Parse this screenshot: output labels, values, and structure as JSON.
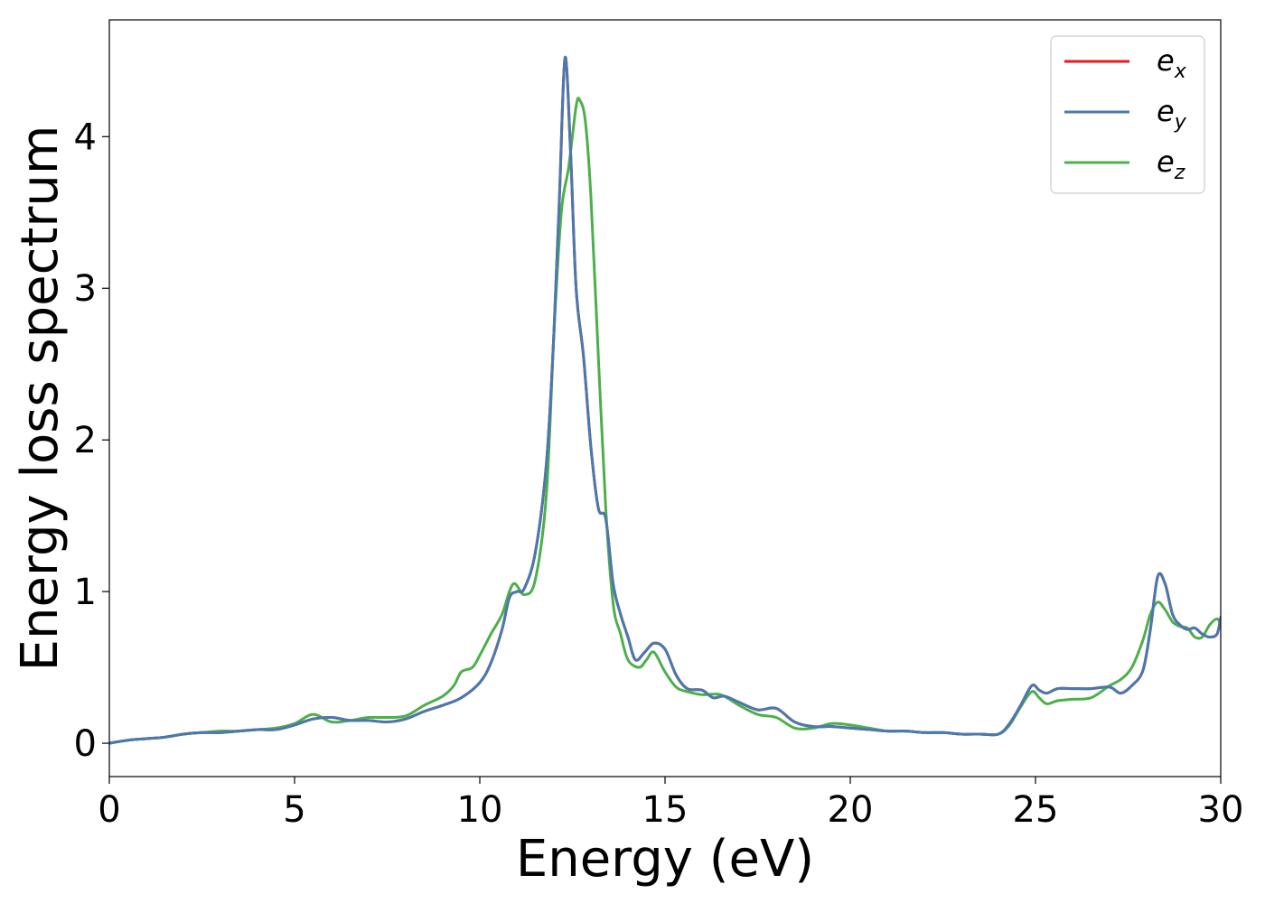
{
  "chart_data": {
    "type": "line",
    "xlabel": "Energy (eV)",
    "ylabel": "Energy loss spectrum",
    "xlim": [
      0,
      30
    ],
    "ylim": [
      -0.22,
      4.77
    ],
    "xticks": [
      "0",
      "5",
      "10",
      "15",
      "20",
      "25",
      "30"
    ],
    "yticks": [
      "0",
      "1",
      "2",
      "3",
      "4"
    ],
    "grid": false,
    "legend_position": "top-right",
    "series": [
      {
        "name": "e_x",
        "label_base": "e",
        "label_sub": "x",
        "color": "#e41a1c",
        "x": [
          0,
          0.5,
          1,
          1.5,
          2,
          2.5,
          3,
          3.5,
          4,
          4.5,
          5,
          5.5,
          6,
          6.5,
          7,
          7.5,
          8,
          8.5,
          9,
          9.5,
          10,
          10.3,
          10.6,
          10.8,
          11,
          11.2,
          11.5,
          11.8,
          12,
          12.15,
          12.3,
          12.45,
          12.6,
          12.8,
          13,
          13.2,
          13.4,
          13.6,
          13.8,
          14,
          14.2,
          14.45,
          14.7,
          15,
          15.3,
          15.6,
          16,
          16.3,
          16.6,
          17,
          17.5,
          18,
          18.5,
          19,
          19.5,
          20,
          20.5,
          21,
          21.5,
          22,
          22.5,
          23,
          23.5,
          24,
          24.3,
          24.6,
          24.9,
          25.1,
          25.3,
          25.6,
          26,
          26.5,
          27,
          27.3,
          27.6,
          27.9,
          28.1,
          28.3,
          28.5,
          28.7,
          28.9,
          29.1,
          29.3,
          29.5,
          29.7,
          29.9,
          30
        ],
        "values": [
          0,
          0.02,
          0.03,
          0.04,
          0.06,
          0.07,
          0.07,
          0.08,
          0.09,
          0.09,
          0.12,
          0.16,
          0.17,
          0.15,
          0.15,
          0.14,
          0.16,
          0.21,
          0.25,
          0.3,
          0.4,
          0.53,
          0.75,
          0.96,
          1.0,
          1.02,
          1.26,
          1.85,
          2.7,
          3.6,
          4.52,
          3.9,
          3.0,
          2.55,
          1.95,
          1.55,
          1.48,
          1.05,
          0.85,
          0.7,
          0.55,
          0.6,
          0.66,
          0.62,
          0.45,
          0.36,
          0.35,
          0.3,
          0.31,
          0.27,
          0.22,
          0.23,
          0.14,
          0.11,
          0.11,
          0.1,
          0.09,
          0.08,
          0.08,
          0.07,
          0.07,
          0.06,
          0.06,
          0.06,
          0.13,
          0.25,
          0.38,
          0.35,
          0.33,
          0.36,
          0.36,
          0.36,
          0.37,
          0.33,
          0.38,
          0.48,
          0.75,
          1.1,
          1.05,
          0.85,
          0.78,
          0.75,
          0.76,
          0.72,
          0.7,
          0.72,
          0.83
        ]
      },
      {
        "name": "e_y",
        "label_base": "e",
        "label_sub": "y",
        "color": "#4a78b0",
        "x": [
          0,
          0.5,
          1,
          1.5,
          2,
          2.5,
          3,
          3.5,
          4,
          4.5,
          5,
          5.5,
          6,
          6.5,
          7,
          7.5,
          8,
          8.5,
          9,
          9.5,
          10,
          10.3,
          10.6,
          10.8,
          11,
          11.2,
          11.5,
          11.8,
          12,
          12.15,
          12.3,
          12.45,
          12.6,
          12.8,
          13,
          13.2,
          13.4,
          13.6,
          13.8,
          14,
          14.2,
          14.45,
          14.7,
          15,
          15.3,
          15.6,
          16,
          16.3,
          16.6,
          17,
          17.5,
          18,
          18.5,
          19,
          19.5,
          20,
          20.5,
          21,
          21.5,
          22,
          22.5,
          23,
          23.5,
          24,
          24.3,
          24.6,
          24.9,
          25.1,
          25.3,
          25.6,
          26,
          26.5,
          27,
          27.3,
          27.6,
          27.9,
          28.1,
          28.3,
          28.5,
          28.7,
          28.9,
          29.1,
          29.3,
          29.5,
          29.7,
          29.9,
          30
        ],
        "values": [
          0,
          0.02,
          0.03,
          0.04,
          0.06,
          0.07,
          0.07,
          0.08,
          0.09,
          0.09,
          0.12,
          0.16,
          0.17,
          0.15,
          0.15,
          0.14,
          0.16,
          0.21,
          0.25,
          0.3,
          0.4,
          0.53,
          0.75,
          0.96,
          1.0,
          1.02,
          1.26,
          1.85,
          2.7,
          3.6,
          4.52,
          3.9,
          3.0,
          2.55,
          1.95,
          1.55,
          1.48,
          1.05,
          0.85,
          0.7,
          0.55,
          0.6,
          0.66,
          0.62,
          0.45,
          0.36,
          0.35,
          0.3,
          0.31,
          0.27,
          0.22,
          0.23,
          0.14,
          0.11,
          0.11,
          0.1,
          0.09,
          0.08,
          0.08,
          0.07,
          0.07,
          0.06,
          0.06,
          0.06,
          0.13,
          0.25,
          0.38,
          0.35,
          0.33,
          0.36,
          0.36,
          0.36,
          0.37,
          0.33,
          0.38,
          0.48,
          0.75,
          1.1,
          1.05,
          0.85,
          0.78,
          0.75,
          0.76,
          0.72,
          0.7,
          0.72,
          0.83
        ]
      },
      {
        "name": "e_z",
        "label_base": "e",
        "label_sub": "z",
        "color": "#4daf4a",
        "x": [
          0,
          0.5,
          1,
          1.5,
          2,
          2.5,
          3,
          3.5,
          4,
          4.5,
          5,
          5.5,
          6,
          6.5,
          7,
          7.5,
          8,
          8.5,
          9,
          9.3,
          9.5,
          9.8,
          10,
          10.3,
          10.6,
          10.9,
          11.2,
          11.5,
          11.8,
          12,
          12.2,
          12.4,
          12.6,
          12.7,
          12.85,
          13,
          13.2,
          13.4,
          13.6,
          13.8,
          14,
          14.3,
          14.5,
          14.7,
          15,
          15.3,
          15.6,
          16,
          16.5,
          17,
          17.5,
          18,
          18.5,
          19,
          19.5,
          20,
          20.5,
          21,
          21.5,
          22,
          22.5,
          23,
          23.5,
          24,
          24.3,
          24.6,
          24.9,
          25.1,
          25.3,
          25.6,
          26,
          26.5,
          27,
          27.3,
          27.6,
          27.9,
          28.1,
          28.3,
          28.5,
          28.7,
          28.9,
          29.1,
          29.3,
          29.5,
          29.7,
          29.9,
          30
        ],
        "values": [
          0,
          0.02,
          0.03,
          0.04,
          0.06,
          0.07,
          0.08,
          0.08,
          0.09,
          0.1,
          0.13,
          0.19,
          0.14,
          0.15,
          0.17,
          0.17,
          0.18,
          0.25,
          0.31,
          0.38,
          0.47,
          0.5,
          0.58,
          0.72,
          0.85,
          1.05,
          0.98,
          1.08,
          1.65,
          2.7,
          3.5,
          3.8,
          4.2,
          4.24,
          4.1,
          3.6,
          2.55,
          1.55,
          0.92,
          0.72,
          0.55,
          0.5,
          0.55,
          0.6,
          0.47,
          0.37,
          0.34,
          0.32,
          0.32,
          0.25,
          0.19,
          0.17,
          0.1,
          0.1,
          0.13,
          0.12,
          0.1,
          0.08,
          0.08,
          0.07,
          0.07,
          0.06,
          0.06,
          0.06,
          0.12,
          0.24,
          0.34,
          0.3,
          0.26,
          0.28,
          0.29,
          0.3,
          0.38,
          0.42,
          0.5,
          0.68,
          0.85,
          0.93,
          0.88,
          0.8,
          0.77,
          0.76,
          0.7,
          0.7,
          0.78,
          0.82,
          0.78
        ]
      }
    ]
  }
}
